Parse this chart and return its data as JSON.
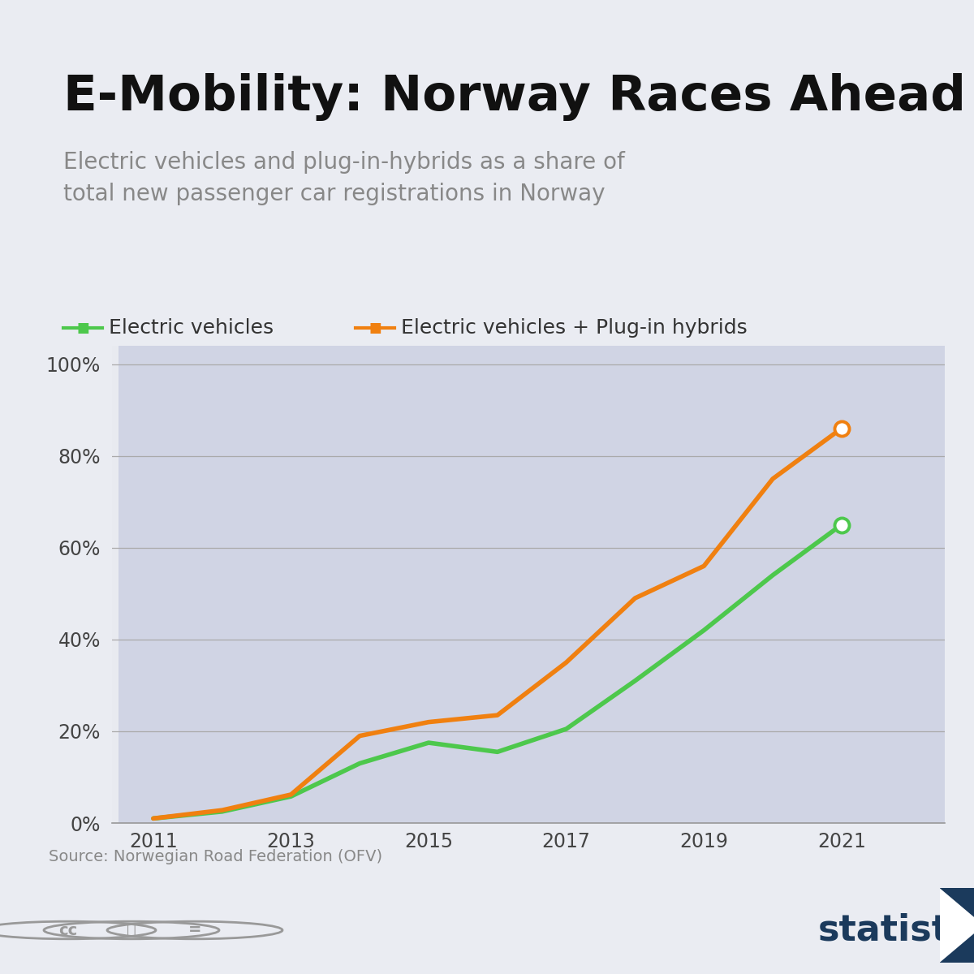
{
  "title": "E-Mobility: Norway Races Ahead",
  "subtitle": "Electric vehicles and plug-in-hybrids as a share of\ntotal new passenger car registrations in Norway",
  "source": "Source: Norwegian Road Federation (OFV)",
  "background_color": "#eaecf2",
  "plot_bg_light": "#e8eaf0",
  "stripe_color": "#d0d4e4",
  "title_bar_color": "#5dc85c",
  "green_color": "#4dc84c",
  "orange_color": "#f08010",
  "years": [
    2011,
    2012,
    2013,
    2014,
    2015,
    2016,
    2017,
    2018,
    2019,
    2020,
    2021
  ],
  "ev_values": [
    1.0,
    2.5,
    5.8,
    13.0,
    17.5,
    15.5,
    20.5,
    31.0,
    42.0,
    54.0,
    65.0
  ],
  "hybrid_values": [
    1.0,
    2.8,
    6.2,
    19.0,
    22.0,
    23.5,
    35.0,
    49.0,
    56.0,
    75.0,
    86.0
  ],
  "ylim": [
    0,
    104
  ],
  "yticks": [
    0,
    20,
    40,
    60,
    80,
    100
  ],
  "legend_ev": "Electric vehicles",
  "legend_hybrid": "Electric vehicles + Plug-in hybrids",
  "xtick_labels": [
    "2011",
    "2013",
    "2015",
    "2017",
    "2019",
    "2021"
  ],
  "xtick_positions": [
    2011,
    2013,
    2015,
    2017,
    2019,
    2021
  ],
  "stripe_starts": [
    2011,
    2013,
    2015,
    2017,
    2019,
    2021
  ],
  "title_fontsize": 44,
  "subtitle_fontsize": 20,
  "legend_fontsize": 18,
  "tick_fontsize": 17,
  "source_fontsize": 14
}
